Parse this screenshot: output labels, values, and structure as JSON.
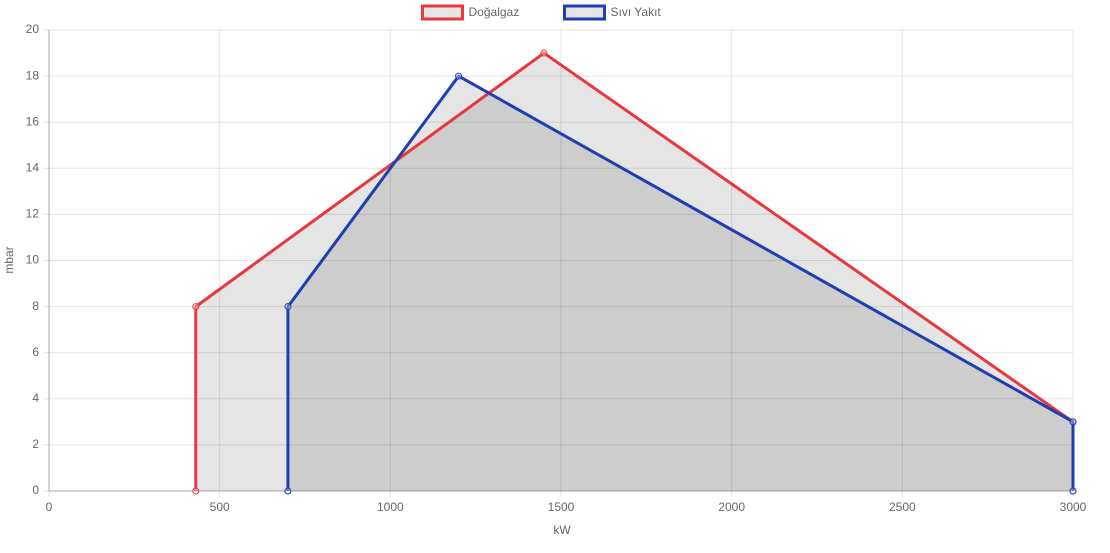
{
  "chart_data": {
    "type": "line",
    "xlabel": "kW",
    "ylabel": "mbar",
    "series": [
      {
        "name": "Doğalgaz",
        "color": "#e8383f",
        "fill": "rgba(0,0,0,0.1)",
        "x": [
          430,
          430,
          1450,
          3000,
          3000
        ],
        "values": [
          0,
          8,
          19,
          3,
          0
        ]
      },
      {
        "name": "Sıvı Yakıt",
        "color": "#1f3fb0",
        "fill": "rgba(0,0,0,0.1)",
        "x": [
          700,
          700,
          1200,
          3000,
          3000
        ],
        "values": [
          0,
          8,
          18,
          3,
          0
        ]
      }
    ],
    "xlim": [
      0,
      3000
    ],
    "xticks": [
      0,
      500,
      1000,
      1500,
      2000,
      2500,
      3000
    ],
    "ylim": [
      0,
      20
    ],
    "yticks": [
      0,
      2,
      4,
      6,
      8,
      10,
      12,
      14,
      16,
      18,
      20
    ],
    "grid": true,
    "legend": "top"
  }
}
